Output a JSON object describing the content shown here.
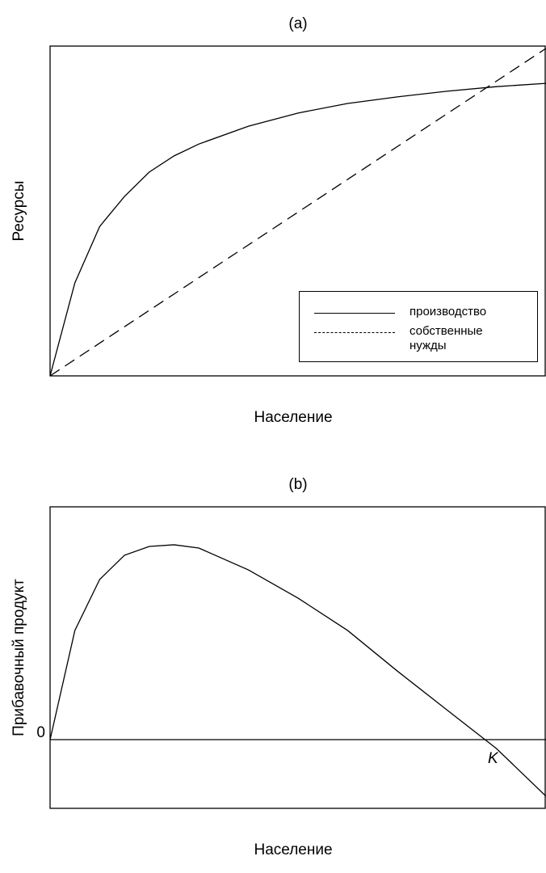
{
  "chart_data": [
    {
      "type": "line",
      "title": "(a)",
      "x_label": "Население",
      "y_label": "Ресурсы",
      "xlim": [
        0,
        100
      ],
      "ylim": [
        0,
        100
      ],
      "series": [
        {
          "name": "производство",
          "color": "#000000",
          "dash": false,
          "x": [
            0,
            5,
            10,
            15,
            20,
            25,
            30,
            40,
            50,
            60,
            70,
            80,
            90,
            100
          ],
          "values": [
            0,
            28.2,
            45.3,
            54.4,
            61.8,
            66.7,
            70.3,
            75.7,
            79.7,
            82.6,
            84.6,
            86.3,
            87.7,
            88.7
          ]
        },
        {
          "name": "собственные нужды",
          "color": "#000000",
          "dash": true,
          "x": [
            0,
            100
          ],
          "values": [
            0,
            99.3
          ]
        }
      ]
    },
    {
      "type": "line",
      "title": "(b)",
      "x_label": "Население",
      "y_label": "Прибавочный продукт",
      "xlim": [
        0,
        100
      ],
      "ylim": [
        -29.5,
        100
      ],
      "yticks": [
        0
      ],
      "annotation": "K",
      "series": [
        {
          "color": "#000000",
          "x": [
            0,
            5,
            10,
            15,
            20,
            25,
            30,
            40,
            50,
            60,
            70,
            80,
            90,
            100
          ],
          "values": [
            0,
            46.9,
            68.8,
            79.2,
            83,
            83.7,
            82.3,
            72.9,
            60.8,
            46.9,
            29.5,
            12.8,
            -3.8,
            -24.3
          ]
        }
      ]
    }
  ]
}
